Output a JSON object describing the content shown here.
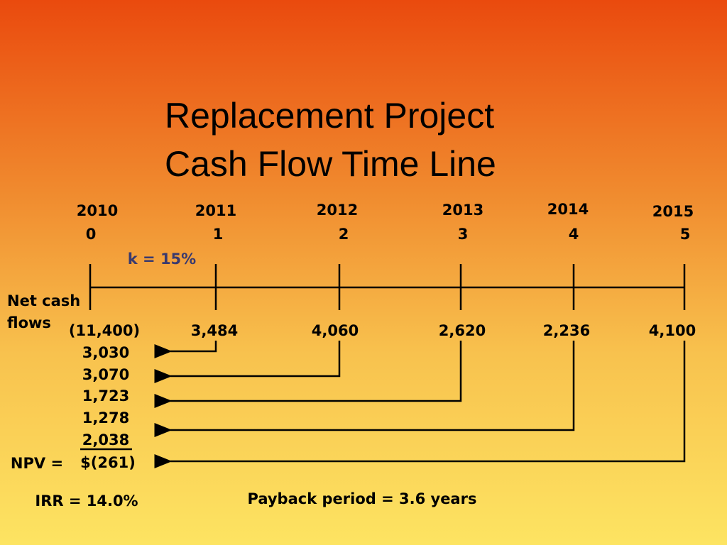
{
  "title": [
    "Replacement Project",
    "Cash Flow Time Line"
  ],
  "periods": [
    {
      "year": "2010",
      "index": "0"
    },
    {
      "year": "2011",
      "index": "1"
    },
    {
      "year": "2012",
      "index": "2"
    },
    {
      "year": "2013",
      "index": "3"
    },
    {
      "year": "2014",
      "index": "4"
    },
    {
      "year": "2015",
      "index": "5"
    }
  ],
  "rate": "k = 15%",
  "row_label": [
    "Net cash",
    "flows"
  ],
  "cash_flows": [
    "(11,400)",
    "3,484",
    "4,060",
    "2,620",
    "2,236",
    "4,100"
  ],
  "present_values": [
    "3,030",
    "3,070",
    "1,723",
    "1,278",
    "2,038"
  ],
  "npv": {
    "label": "NPV =",
    "value": "$(261)"
  },
  "irr": "IRR = 14.0%",
  "payback": "Payback period = 3.6 years"
}
